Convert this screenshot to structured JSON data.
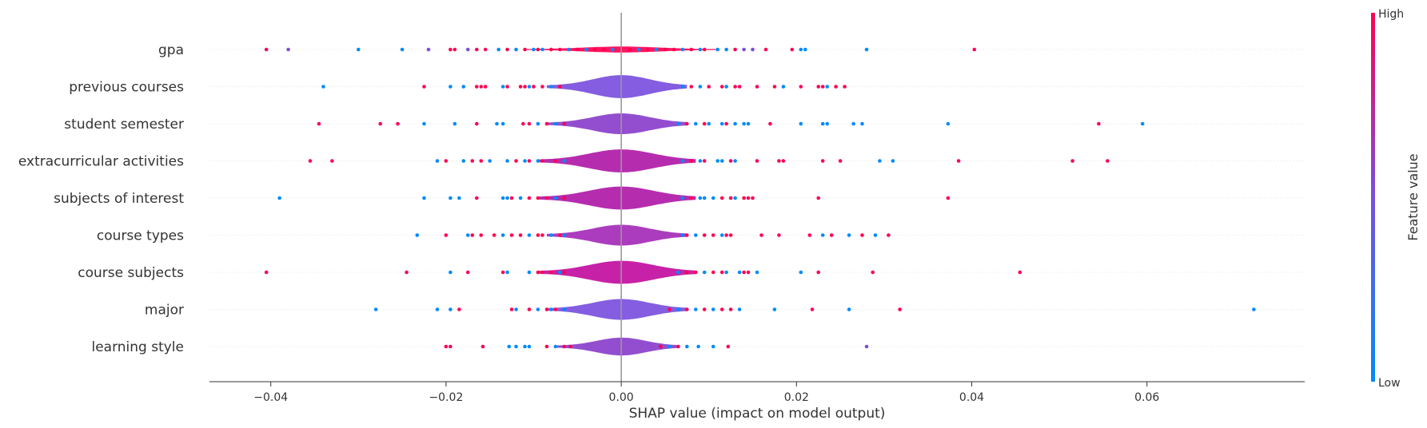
{
  "chart_data": {
    "type": "scatter",
    "subtype": "shap-violin-summary",
    "xlabel": "SHAP value (impact on model output)",
    "xlim": [
      -0.047,
      0.078
    ],
    "xticks": [
      -0.04,
      -0.02,
      0.0,
      0.02,
      0.04,
      0.06
    ],
    "xtick_labels": [
      "−0.04",
      "−0.02",
      "0.00",
      "0.02",
      "0.04",
      "0.06"
    ],
    "colorbar": {
      "title": "Feature value",
      "high_label": "High",
      "low_label": "Low",
      "high_color": "#ff0052",
      "low_color": "#008bfb"
    },
    "features": [
      {
        "name": "gpa",
        "body_color": "#ff0052",
        "body_width": 0.16,
        "body_range": [
          -0.011,
          0.011
        ],
        "points": [
          [
            -0.0405,
            1
          ],
          [
            -0.038,
            0.5
          ],
          [
            -0.03,
            0
          ],
          [
            -0.025,
            0
          ],
          [
            -0.022,
            0.5
          ],
          [
            -0.0195,
            1
          ],
          [
            -0.019,
            1
          ],
          [
            -0.0175,
            0.5
          ],
          [
            -0.0165,
            1
          ],
          [
            -0.0155,
            1
          ],
          [
            -0.014,
            0
          ],
          [
            -0.013,
            1
          ],
          [
            -0.012,
            0
          ],
          [
            -0.011,
            1
          ],
          [
            -0.01,
            0
          ],
          [
            -0.0095,
            1
          ],
          [
            -0.009,
            0
          ],
          [
            -0.008,
            1
          ],
          [
            -0.007,
            1
          ],
          [
            -0.006,
            0
          ],
          [
            -0.005,
            1
          ],
          [
            -0.004,
            0
          ],
          [
            -0.003,
            1
          ],
          [
            -0.002,
            1
          ],
          [
            -0.001,
            0
          ],
          [
            0.001,
            1
          ],
          [
            0.002,
            0
          ],
          [
            0.003,
            1
          ],
          [
            0.004,
            0
          ],
          [
            0.005,
            1
          ],
          [
            0.006,
            1
          ],
          [
            0.007,
            0
          ],
          [
            0.008,
            1
          ],
          [
            0.009,
            0
          ],
          [
            0.0095,
            1
          ],
          [
            0.011,
            0
          ],
          [
            0.012,
            0
          ],
          [
            0.013,
            1
          ],
          [
            0.014,
            0.5
          ],
          [
            0.015,
            0.5
          ],
          [
            0.0165,
            1
          ],
          [
            0.0195,
            1
          ],
          [
            0.0205,
            0
          ],
          [
            0.021,
            0
          ],
          [
            0.028,
            0
          ],
          [
            0.0403,
            1
          ]
        ]
      },
      {
        "name": "previous courses",
        "body_color": "#7a4fdd",
        "body_width": 0.62,
        "body_range": [
          -0.0085,
          0.0075
        ],
        "points": [
          [
            -0.034,
            0
          ],
          [
            -0.0225,
            1
          ],
          [
            -0.0195,
            0
          ],
          [
            -0.018,
            0
          ],
          [
            -0.0165,
            1
          ],
          [
            -0.016,
            1
          ],
          [
            -0.0155,
            1
          ],
          [
            -0.0135,
            0
          ],
          [
            -0.013,
            1
          ],
          [
            -0.0115,
            1
          ],
          [
            -0.011,
            1
          ],
          [
            -0.0105,
            0
          ],
          [
            -0.01,
            1
          ],
          [
            -0.009,
            1
          ],
          [
            -0.008,
            0
          ],
          [
            -0.007,
            1
          ],
          [
            0.007,
            0
          ],
          [
            0.008,
            1
          ],
          [
            0.009,
            0
          ],
          [
            0.01,
            1
          ],
          [
            0.0115,
            1
          ],
          [
            0.012,
            0
          ],
          [
            0.013,
            1
          ],
          [
            0.0135,
            1
          ],
          [
            0.0155,
            1
          ],
          [
            0.0175,
            1
          ],
          [
            0.0185,
            0
          ],
          [
            0.0205,
            1
          ],
          [
            0.0225,
            1
          ],
          [
            0.023,
            1
          ],
          [
            0.0235,
            0
          ],
          [
            0.0245,
            1
          ],
          [
            0.0255,
            1
          ]
        ]
      },
      {
        "name": "student semester",
        "body_color": "#8a3fcc",
        "body_width": 0.56,
        "body_range": [
          -0.0085,
          0.0075
        ],
        "points": [
          [
            -0.0345,
            1
          ],
          [
            -0.0275,
            1
          ],
          [
            -0.0255,
            1
          ],
          [
            -0.0225,
            0
          ],
          [
            -0.019,
            0
          ],
          [
            -0.0165,
            1
          ],
          [
            -0.0142,
            0
          ],
          [
            -0.0135,
            0
          ],
          [
            -0.0112,
            1
          ],
          [
            -0.0105,
            1
          ],
          [
            -0.0095,
            0
          ],
          [
            -0.0085,
            1
          ],
          [
            -0.0075,
            0
          ],
          [
            -0.0065,
            1
          ],
          [
            0.0065,
            0
          ],
          [
            0.0075,
            1
          ],
          [
            0.0085,
            0
          ],
          [
            0.0095,
            1
          ],
          [
            0.01,
            0
          ],
          [
            0.0115,
            0
          ],
          [
            0.012,
            1
          ],
          [
            0.013,
            0
          ],
          [
            0.014,
            0
          ],
          [
            0.0145,
            0
          ],
          [
            0.017,
            1
          ],
          [
            0.0205,
            0
          ],
          [
            0.023,
            0
          ],
          [
            0.0235,
            0
          ],
          [
            0.0265,
            0
          ],
          [
            0.0275,
            0
          ],
          [
            0.0373,
            0
          ],
          [
            0.0545,
            1
          ],
          [
            0.0595,
            0
          ]
        ]
      },
      {
        "name": "extracurricular activities",
        "body_color": "#b01aa8",
        "body_width": 0.62,
        "body_range": [
          -0.0095,
          0.0085
        ],
        "points": [
          [
            -0.0355,
            1
          ],
          [
            -0.033,
            1
          ],
          [
            -0.021,
            0
          ],
          [
            -0.02,
            1
          ],
          [
            -0.018,
            0
          ],
          [
            -0.017,
            1
          ],
          [
            -0.016,
            1
          ],
          [
            -0.015,
            0
          ],
          [
            -0.013,
            0
          ],
          [
            -0.012,
            1
          ],
          [
            -0.011,
            0
          ],
          [
            -0.0105,
            1
          ],
          [
            -0.0095,
            0
          ],
          [
            -0.009,
            1
          ],
          [
            -0.0075,
            1
          ],
          [
            -0.0065,
            0
          ],
          [
            0.007,
            0
          ],
          [
            0.008,
            1
          ],
          [
            0.009,
            0
          ],
          [
            0.0095,
            1
          ],
          [
            0.011,
            0
          ],
          [
            0.0115,
            0
          ],
          [
            0.0125,
            1
          ],
          [
            0.013,
            0
          ],
          [
            0.0155,
            1
          ],
          [
            0.018,
            1
          ],
          [
            0.0185,
            1
          ],
          [
            0.023,
            1
          ],
          [
            0.025,
            1
          ],
          [
            0.0295,
            0
          ],
          [
            0.031,
            0
          ],
          [
            0.0385,
            1
          ],
          [
            0.0515,
            1
          ],
          [
            0.0555,
            1
          ]
        ]
      },
      {
        "name": "subjects of interest",
        "body_color": "#b01aa8",
        "body_width": 0.62,
        "body_range": [
          -0.0095,
          0.0085
        ],
        "points": [
          [
            -0.039,
            0
          ],
          [
            -0.0225,
            0
          ],
          [
            -0.0195,
            0
          ],
          [
            -0.0185,
            0
          ],
          [
            -0.0165,
            1
          ],
          [
            -0.0135,
            0
          ],
          [
            -0.013,
            0
          ],
          [
            -0.0125,
            1
          ],
          [
            -0.0115,
            0
          ],
          [
            -0.0105,
            1
          ],
          [
            -0.0095,
            1
          ],
          [
            -0.0085,
            1
          ],
          [
            -0.0075,
            0
          ],
          [
            -0.0065,
            1
          ],
          [
            0.007,
            0
          ],
          [
            0.008,
            1
          ],
          [
            0.009,
            0
          ],
          [
            0.0095,
            0
          ],
          [
            0.0105,
            0
          ],
          [
            0.0115,
            1
          ],
          [
            0.0125,
            1
          ],
          [
            0.013,
            0
          ],
          [
            0.014,
            1
          ],
          [
            0.0145,
            1
          ],
          [
            0.015,
            1
          ],
          [
            0.0225,
            1
          ],
          [
            0.0373,
            1
          ]
        ]
      },
      {
        "name": "course types",
        "body_color": "#a52bb8",
        "body_width": 0.56,
        "body_range": [
          -0.0085,
          0.0075
        ],
        "points": [
          [
            -0.0233,
            0
          ],
          [
            -0.02,
            1
          ],
          [
            -0.0175,
            0
          ],
          [
            -0.017,
            1
          ],
          [
            -0.016,
            1
          ],
          [
            -0.0145,
            1
          ],
          [
            -0.0135,
            0
          ],
          [
            -0.0125,
            1
          ],
          [
            -0.0115,
            1
          ],
          [
            -0.0105,
            0
          ],
          [
            -0.0095,
            1
          ],
          [
            -0.009,
            1
          ],
          [
            -0.008,
            0
          ],
          [
            -0.007,
            1
          ],
          [
            -0.0065,
            0
          ],
          [
            0.007,
            0
          ],
          [
            0.0075,
            1
          ],
          [
            0.0085,
            0
          ],
          [
            0.0095,
            1
          ],
          [
            0.0105,
            1
          ],
          [
            0.0115,
            0
          ],
          [
            0.012,
            1
          ],
          [
            0.0125,
            1
          ],
          [
            0.016,
            1
          ],
          [
            0.018,
            1
          ],
          [
            0.0215,
            1
          ],
          [
            0.023,
            0
          ],
          [
            0.024,
            1
          ],
          [
            0.026,
            0
          ],
          [
            0.0275,
            1
          ],
          [
            0.029,
            0
          ],
          [
            0.0305,
            1
          ]
        ]
      },
      {
        "name": "course subjects",
        "body_color": "#c20fa0",
        "body_width": 0.62,
        "body_range": [
          -0.0095,
          0.0085
        ],
        "points": [
          [
            -0.0405,
            1
          ],
          [
            -0.0245,
            1
          ],
          [
            -0.0195,
            0
          ],
          [
            -0.0175,
            1
          ],
          [
            -0.0135,
            1
          ],
          [
            -0.013,
            0
          ],
          [
            -0.0105,
            0
          ],
          [
            -0.0095,
            1
          ],
          [
            -0.009,
            1
          ],
          [
            -0.008,
            1
          ],
          [
            -0.007,
            0
          ],
          [
            -0.0065,
            1
          ],
          [
            0.0065,
            0
          ],
          [
            0.0075,
            1
          ],
          [
            0.0085,
            1
          ],
          [
            0.0095,
            0
          ],
          [
            0.0105,
            1
          ],
          [
            0.0115,
            1
          ],
          [
            0.012,
            0
          ],
          [
            0.0135,
            0
          ],
          [
            0.014,
            1
          ],
          [
            0.0145,
            1
          ],
          [
            0.0155,
            0
          ],
          [
            0.0205,
            0
          ],
          [
            0.0225,
            1
          ],
          [
            0.0287,
            1
          ],
          [
            0.0455,
            1
          ]
        ]
      },
      {
        "name": "major",
        "body_color": "#7a4fdd",
        "body_width": 0.56,
        "body_range": [
          -0.0085,
          0.0075
        ],
        "points": [
          [
            -0.028,
            0
          ],
          [
            -0.021,
            0
          ],
          [
            -0.0195,
            0
          ],
          [
            -0.0185,
            1
          ],
          [
            -0.0125,
            1
          ],
          [
            -0.012,
            0
          ],
          [
            -0.0105,
            1
          ],
          [
            -0.0095,
            0
          ],
          [
            -0.0085,
            1
          ],
          [
            -0.008,
            0
          ],
          [
            -0.0075,
            1
          ],
          [
            -0.0065,
            0
          ],
          [
            0.0055,
            1
          ],
          [
            0.0065,
            0
          ],
          [
            0.0075,
            1
          ],
          [
            0.0085,
            0
          ],
          [
            0.0095,
            1
          ],
          [
            0.0105,
            0
          ],
          [
            0.0115,
            1
          ],
          [
            0.0125,
            1
          ],
          [
            0.0135,
            0
          ],
          [
            0.0175,
            0
          ],
          [
            0.0218,
            1
          ],
          [
            0.026,
            0
          ],
          [
            0.0318,
            1
          ],
          [
            0.0722,
            0
          ]
        ]
      },
      {
        "name": "learning style",
        "body_color": "#8a3fcc",
        "body_width": 0.48,
        "body_range": [
          -0.0075,
          0.0065
        ],
        "points": [
          [
            -0.02,
            1
          ],
          [
            -0.0195,
            1
          ],
          [
            -0.0158,
            1
          ],
          [
            -0.0128,
            0
          ],
          [
            -0.012,
            0
          ],
          [
            -0.011,
            0
          ],
          [
            -0.0105,
            0
          ],
          [
            -0.0085,
            1
          ],
          [
            -0.0075,
            0
          ],
          [
            -0.0065,
            1
          ],
          [
            -0.0058,
            1
          ],
          [
            0.0045,
            1
          ],
          [
            0.0055,
            0
          ],
          [
            0.0065,
            1
          ],
          [
            0.0075,
            0
          ],
          [
            0.0088,
            0
          ],
          [
            0.0105,
            0
          ],
          [
            0.0122,
            1
          ],
          [
            0.028,
            0.5
          ]
        ]
      }
    ]
  }
}
